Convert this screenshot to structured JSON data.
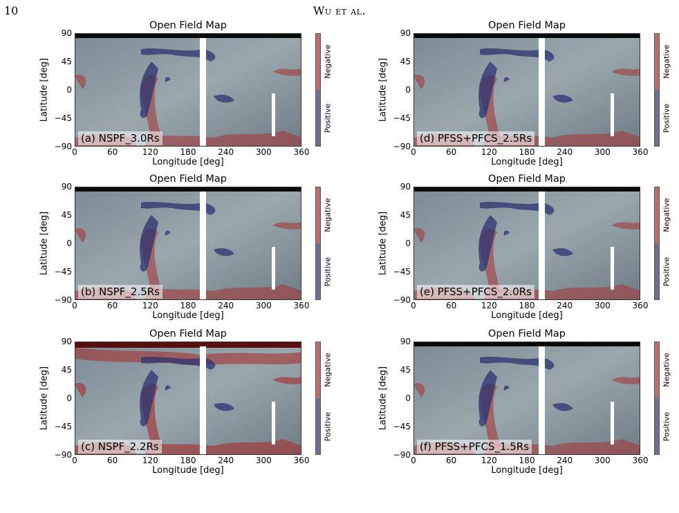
{
  "header": {
    "page_number": "10",
    "running_head": "Wu et al."
  },
  "figure": {
    "yticks": [
      "90",
      "45",
      "0",
      "−45",
      "−90"
    ],
    "xticks": [
      "0",
      "60",
      "120",
      "180",
      "240",
      "300",
      "360"
    ],
    "xlabel": "Longitude [deg]",
    "ylabel": "Latitude [deg]",
    "colorbar": {
      "top_label": "Negative",
      "bottom_label": "Positive",
      "negative_color": "#b96f6f",
      "positive_color": "#6f6f96"
    },
    "panels": [
      {
        "title": "Open Field Map",
        "label": "(a) NSPF_3.0Rs"
      },
      {
        "title": "Open Field Map",
        "label": "(d) PFSS+PFCS_2.5Rs"
      },
      {
        "title": "Open Field Map",
        "label": "(b) NSPF_2.5Rs"
      },
      {
        "title": "Open Field Map",
        "label": "(e) PFSS+PFCS_2.0Rs"
      },
      {
        "title": "Open Field Map",
        "label": "(c) NSPF_2.2Rs"
      },
      {
        "title": "Open Field Map",
        "label": "(f) PFSS+PFCS_1.5Rs"
      }
    ]
  }
}
